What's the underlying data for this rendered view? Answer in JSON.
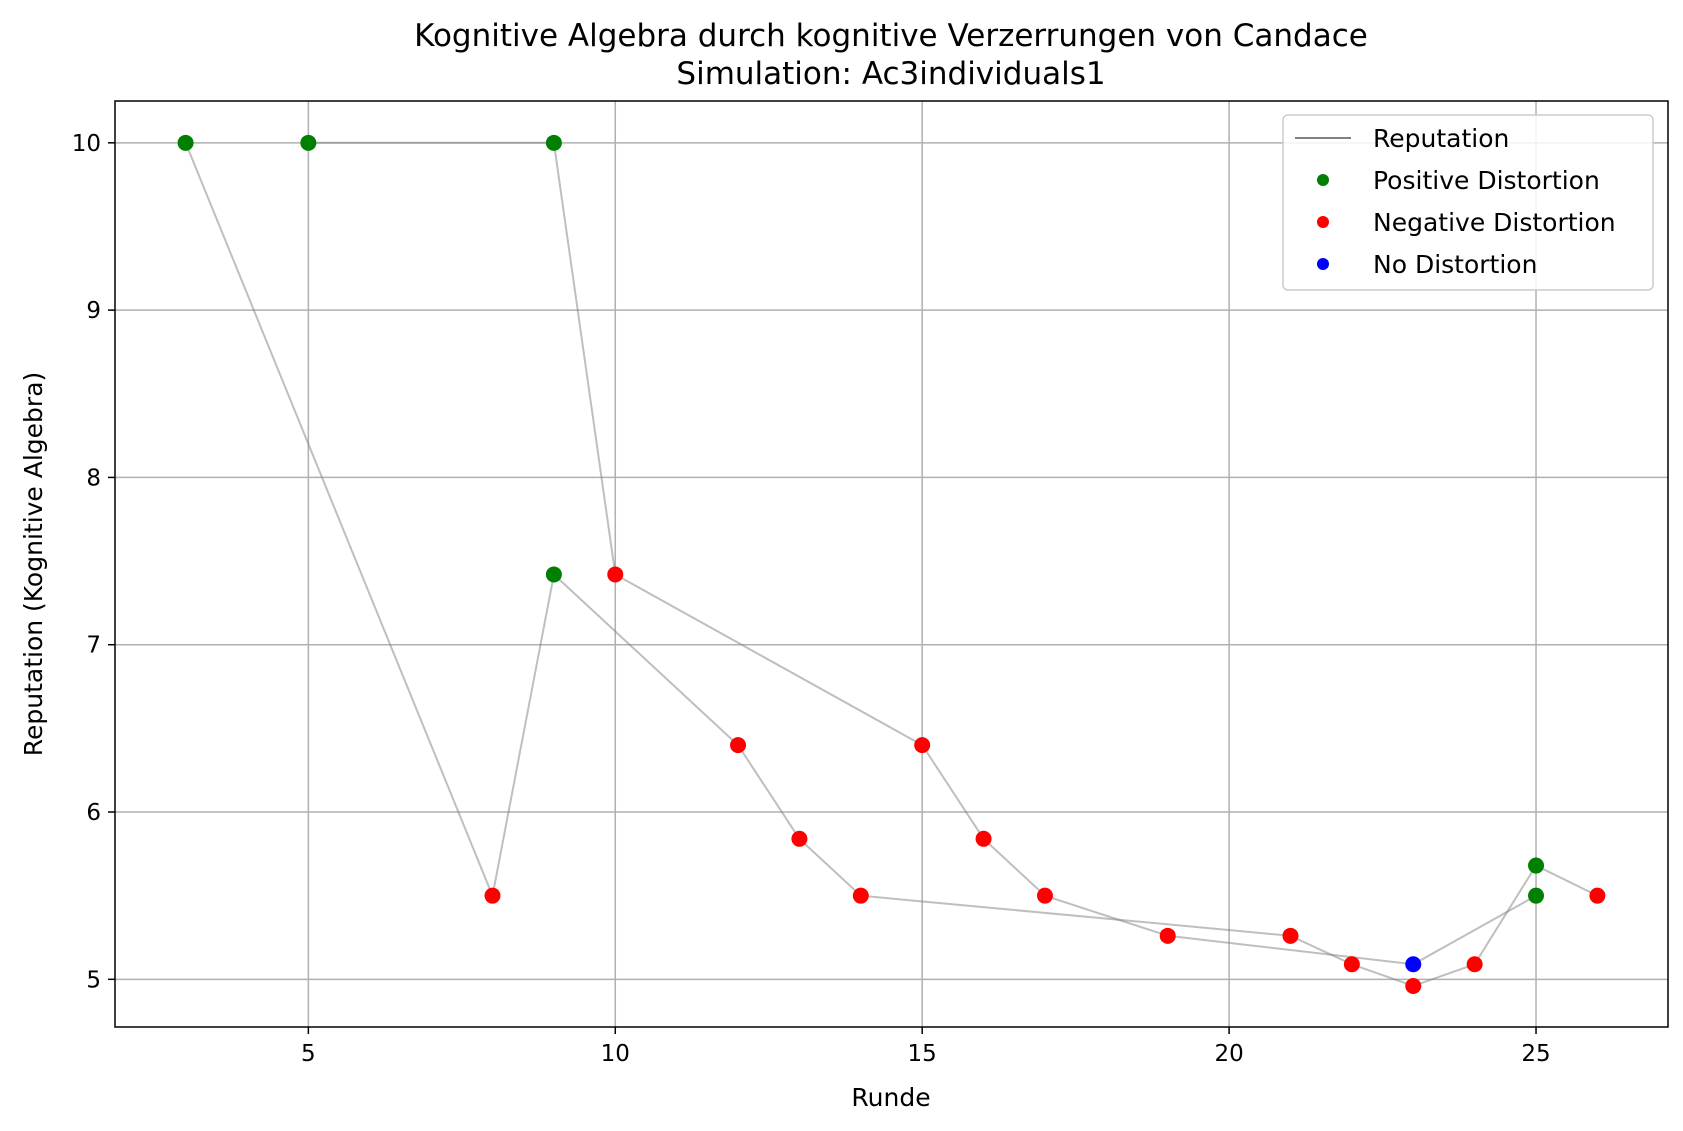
{
  "chart_data": {
    "type": "line",
    "title": "Kognitive Algebra durch kognitive Verzerrungen von Candace",
    "subtitle": "Simulation: Ac3individuals1",
    "xlabel": "Runde",
    "ylabel": "Reputation (Kognitive Algebra)",
    "xlim": [
      1.85,
      27.15
    ],
    "ylim": [
      4.715,
      10.25
    ],
    "xticks": [
      5,
      10,
      15,
      20,
      25
    ],
    "yticks": [
      5,
      6,
      7,
      8,
      9,
      10
    ],
    "grid": true,
    "legend_position": "top-right",
    "legend": [
      {
        "label": "Reputation",
        "kind": "line",
        "color": "#808080"
      },
      {
        "label": "Positive Distortion",
        "kind": "marker",
        "color": "#008000"
      },
      {
        "label": "Negative Distortion",
        "kind": "marker",
        "color": "#ff0000"
      },
      {
        "label": "No Distortion",
        "kind": "marker",
        "color": "#0000ff"
      }
    ],
    "series": [
      {
        "type": "line",
        "color": "#808080",
        "points": [
          {
            "x": 3,
            "y": 10.0,
            "d": "positive"
          },
          {
            "x": 8,
            "y": 5.5,
            "d": "negative"
          },
          {
            "x": 9,
            "y": 7.42,
            "d": "positive"
          },
          {
            "x": 12,
            "y": 6.4,
            "d": "negative"
          },
          {
            "x": 13,
            "y": 5.84,
            "d": "negative"
          },
          {
            "x": 14,
            "y": 5.5,
            "d": "negative"
          },
          {
            "x": 21,
            "y": 5.26,
            "d": "negative"
          },
          {
            "x": 22,
            "y": 5.09,
            "d": "negative"
          },
          {
            "x": 23,
            "y": 4.96,
            "d": "negative"
          },
          {
            "x": 24,
            "y": 5.09,
            "d": "negative"
          },
          {
            "x": 25,
            "y": 5.68,
            "d": "positive"
          },
          {
            "x": 26,
            "y": 5.5,
            "d": "negative"
          }
        ]
      },
      {
        "type": "line",
        "color": "#808080",
        "points": [
          {
            "x": 5,
            "y": 10.0,
            "d": "positive"
          },
          {
            "x": 9,
            "y": 10.0,
            "d": "positive"
          },
          {
            "x": 10,
            "y": 7.42,
            "d": "negative"
          },
          {
            "x": 15,
            "y": 6.4,
            "d": "negative"
          },
          {
            "x": 16,
            "y": 5.84,
            "d": "negative"
          },
          {
            "x": 17,
            "y": 5.5,
            "d": "negative"
          },
          {
            "x": 19,
            "y": 5.26,
            "d": "negative"
          },
          {
            "x": 23,
            "y": 5.09,
            "d": "none"
          },
          {
            "x": 25,
            "y": 5.5,
            "d": "positive"
          }
        ]
      }
    ],
    "colors": {
      "positive": "#008000",
      "negative": "#ff0000",
      "none": "#0000ff",
      "line": "#808080",
      "grid": "#b0b0b0"
    }
  }
}
